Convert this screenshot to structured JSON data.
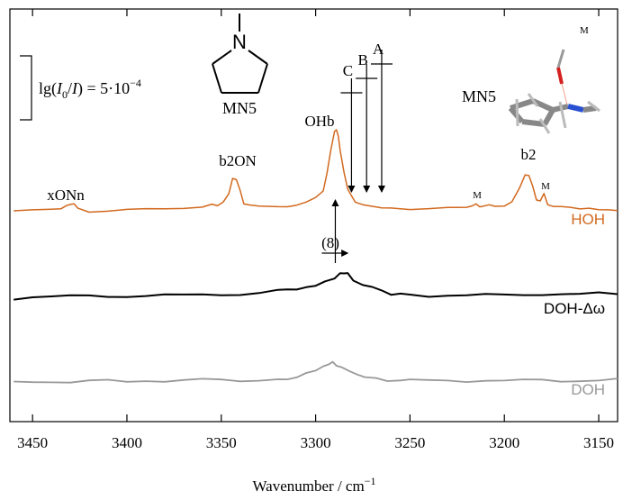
{
  "chart_data": {
    "type": "line",
    "xlabel": "Wavenumber / cm",
    "xlabel_superscript": "−1",
    "xlim": [
      3462,
      3140
    ],
    "x_reversed": true,
    "xticks": [
      3450,
      3400,
      3350,
      3300,
      3250,
      3200,
      3150
    ],
    "yaxis_ticklabels": "none",
    "series": [
      {
        "name": "HOH",
        "color": "#D2691E",
        "points": [
          [
            3460,
            0.1
          ],
          [
            3450,
            0.2
          ],
          [
            3440,
            0.6
          ],
          [
            3435,
            0.9
          ],
          [
            3432,
            1.5
          ],
          [
            3430,
            2.4
          ],
          [
            3428,
            2.2
          ],
          [
            3426,
            1.0
          ],
          [
            3420,
            0.2
          ],
          [
            3410,
            0.2
          ],
          [
            3400,
            0.4
          ],
          [
            3390,
            0.6
          ],
          [
            3380,
            0.9
          ],
          [
            3370,
            1.3
          ],
          [
            3360,
            1.6
          ],
          [
            3355,
            2.3
          ],
          [
            3352,
            2.0
          ],
          [
            3349,
            2.5
          ],
          [
            3346,
            5.5
          ],
          [
            3344,
            9.6
          ],
          [
            3342,
            9.8
          ],
          [
            3340,
            6.0
          ],
          [
            3338,
            2.6
          ],
          [
            3335,
            1.7
          ],
          [
            3330,
            1.5
          ],
          [
            3320,
            1.7
          ],
          [
            3315,
            1.8
          ],
          [
            3310,
            2.3
          ],
          [
            3305,
            3.1
          ],
          [
            3300,
            4.3
          ],
          [
            3296,
            6.4
          ],
          [
            3294,
            11.0
          ],
          [
            3292,
            18.5
          ],
          [
            3290,
            23.5
          ],
          [
            3289,
            24.0
          ],
          [
            3288,
            22.5
          ],
          [
            3287,
            18.5
          ],
          [
            3285,
            11.5
          ],
          [
            3283,
            7.0
          ],
          [
            3281,
            4.5
          ],
          [
            3279,
            2.9
          ],
          [
            3275,
            1.9
          ],
          [
            3270,
            1.6
          ],
          [
            3265,
            1.3
          ],
          [
            3260,
            1.4
          ],
          [
            3250,
            0.9
          ],
          [
            3240,
            0.8
          ],
          [
            3230,
            0.9
          ],
          [
            3220,
            1.1
          ],
          [
            3217,
            1.6
          ],
          [
            3215,
            2.3
          ],
          [
            3213,
            1.6
          ],
          [
            3208,
            2.0
          ],
          [
            3205,
            1.9
          ],
          [
            3200,
            2.0
          ],
          [
            3196,
            3.2
          ],
          [
            3192,
            7.0
          ],
          [
            3189,
            10.6
          ],
          [
            3187,
            10.9
          ],
          [
            3185,
            7.5
          ],
          [
            3183,
            3.4
          ],
          [
            3181,
            3.4
          ],
          [
            3179,
            5.1
          ],
          [
            3177,
            2.4
          ],
          [
            3174,
            1.4
          ],
          [
            3170,
            1.2
          ],
          [
            3165,
            1.1
          ],
          [
            3160,
            0.8
          ],
          [
            3155,
            1.2
          ],
          [
            3150,
            0.9
          ],
          [
            3145,
            0.9
          ],
          [
            3140,
            0.6
          ]
        ]
      },
      {
        "name": "DOH-Δω",
        "color": "#000000",
        "points": [
          [
            3460,
            0.2
          ],
          [
            3450,
            0.7
          ],
          [
            3440,
            0.6
          ],
          [
            3430,
            0.8
          ],
          [
            3420,
            1.0
          ],
          [
            3410,
            0.9
          ],
          [
            3400,
            0.9
          ],
          [
            3390,
            0.9
          ],
          [
            3380,
            1.1
          ],
          [
            3370,
            1.1
          ],
          [
            3360,
            1.5
          ],
          [
            3350,
            1.5
          ],
          [
            3340,
            1.4
          ],
          [
            3330,
            1.6
          ],
          [
            3320,
            2.4
          ],
          [
            3315,
            2.6
          ],
          [
            3310,
            2.7
          ],
          [
            3305,
            3.6
          ],
          [
            3300,
            4.2
          ],
          [
            3295,
            5.6
          ],
          [
            3290,
            6.4
          ],
          [
            3287,
            7.6
          ],
          [
            3285,
            7.8
          ],
          [
            3283,
            7.4
          ],
          [
            3280,
            5.5
          ],
          [
            3275,
            4.0
          ],
          [
            3270,
            3.3
          ],
          [
            3265,
            2.2
          ],
          [
            3260,
            1.0
          ],
          [
            3255,
            1.5
          ],
          [
            3250,
            1.4
          ],
          [
            3240,
            1.0
          ],
          [
            3230,
            1.2
          ],
          [
            3220,
            1.0
          ],
          [
            3210,
            1.2
          ],
          [
            3200,
            1.2
          ],
          [
            3190,
            1.4
          ],
          [
            3180,
            1.5
          ],
          [
            3170,
            1.5
          ],
          [
            3160,
            1.3
          ],
          [
            3150,
            1.7
          ],
          [
            3140,
            1.5
          ]
        ]
      },
      {
        "name": "DOH",
        "color": "#999999",
        "points": [
          [
            3460,
            0.2
          ],
          [
            3450,
            0.4
          ],
          [
            3440,
            0.5
          ],
          [
            3430,
            0.2
          ],
          [
            3420,
            0.5
          ],
          [
            3410,
            0.6
          ],
          [
            3400,
            0.3
          ],
          [
            3390,
            0.8
          ],
          [
            3380,
            0.6
          ],
          [
            3370,
            0.8
          ],
          [
            3360,
            0.9
          ],
          [
            3350,
            0.8
          ],
          [
            3340,
            0.6
          ],
          [
            3330,
            1.0
          ],
          [
            3320,
            1.2
          ],
          [
            3315,
            1.0
          ],
          [
            3310,
            1.4
          ],
          [
            3305,
            2.6
          ],
          [
            3300,
            3.3
          ],
          [
            3296,
            4.6
          ],
          [
            3293,
            5.8
          ],
          [
            3291,
            5.9
          ],
          [
            3289,
            5.4
          ],
          [
            3286,
            4.3
          ],
          [
            3282,
            3.1
          ],
          [
            3278,
            2.3
          ],
          [
            3274,
            1.8
          ],
          [
            3268,
            1.1
          ],
          [
            3262,
            0.7
          ],
          [
            3255,
            0.5
          ],
          [
            3250,
            0.7
          ],
          [
            3240,
            0.6
          ],
          [
            3230,
            0.8
          ],
          [
            3220,
            0.6
          ],
          [
            3210,
            0.8
          ],
          [
            3200,
            0.5
          ],
          [
            3190,
            0.7
          ],
          [
            3180,
            0.9
          ],
          [
            3170,
            0.6
          ],
          [
            3160,
            0.8
          ],
          [
            3150,
            0.7
          ],
          [
            3140,
            1.0
          ]
        ]
      }
    ],
    "annotations": {
      "scale_bar": {
        "prefix": "lg(",
        "i0": "I",
        "i0_sub": "0",
        "slash": "/",
        "i": "I",
        "suffix": ") = 5·10",
        "exponent": "−4"
      },
      "molecule_label_left": "MN5",
      "molecule_label_right": "MN5",
      "hydroxyl_label": "M",
      "peak_labels": {
        "xONn": "xONn",
        "b2ON": "b2ON",
        "OHb": "OHb",
        "b2": "b2",
        "m1": "M",
        "m2": "M"
      },
      "predictions": [
        {
          "label": "C",
          "x": 3281
        },
        {
          "label": "B",
          "x": 3273
        },
        {
          "label": "A",
          "x": 3265
        }
      ],
      "shift": {
        "label": "(8)",
        "from_x": 3291,
        "to_x": 3284
      }
    }
  }
}
